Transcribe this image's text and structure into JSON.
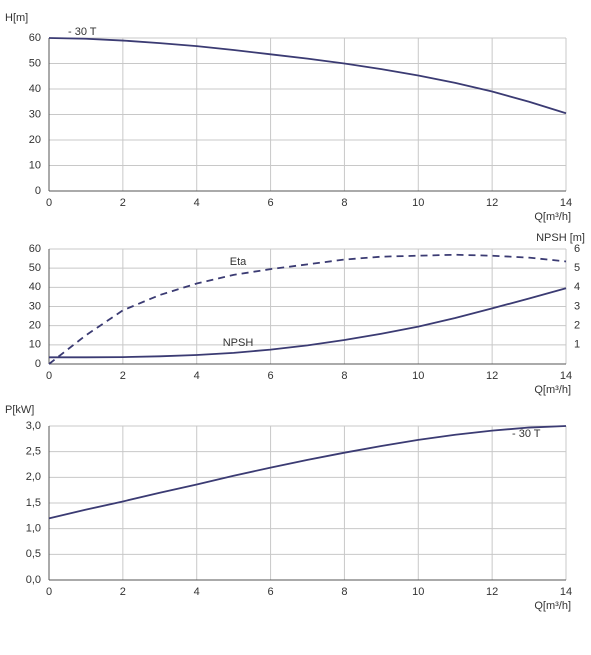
{
  "chart_data": [
    {
      "type": "line",
      "y_label": "H[m]",
      "x_label": "Q[m³/h]",
      "annotation": "- 30 T",
      "x": [
        0,
        1,
        2,
        3,
        4,
        5,
        6,
        7,
        8,
        9,
        10,
        11,
        12,
        13,
        14
      ],
      "xlim": [
        0,
        14
      ],
      "xticks": [
        0,
        2,
        4,
        6,
        8,
        10,
        12,
        14
      ],
      "ylim": [
        0,
        60
      ],
      "yticks": [
        0,
        10,
        20,
        30,
        40,
        50,
        60
      ],
      "grid": true,
      "series": [
        {
          "color": "#3b3b73",
          "style": "solid",
          "values": [
            60,
            59.7,
            59,
            58,
            56.8,
            55.3,
            53.6,
            51.9,
            50,
            47.8,
            45.3,
            42.4,
            39,
            35,
            30.5
          ]
        }
      ]
    },
    {
      "type": "line",
      "y2_label": "NPSH [m]",
      "x_label": "Q[m³/h]",
      "x": [
        0,
        1,
        2,
        3,
        4,
        5,
        6,
        7,
        8,
        9,
        10,
        11,
        12,
        13,
        14
      ],
      "xlim": [
        0,
        14
      ],
      "xticks": [
        0,
        2,
        4,
        6,
        8,
        10,
        12,
        14
      ],
      "ylim": [
        0,
        60
      ],
      "yticks": [
        0,
        10,
        20,
        30,
        40,
        50,
        60
      ],
      "y2lim": [
        0,
        6
      ],
      "y2ticks": [
        1,
        2,
        3,
        4,
        5,
        6
      ],
      "grid": true,
      "series": [
        {
          "name": "Eta",
          "color": "#3b3b73",
          "style": "dashed",
          "values": [
            0,
            15,
            28,
            36,
            42,
            46.5,
            49.5,
            52,
            54.5,
            56,
            56.5,
            57,
            56.5,
            55.5,
            53.5
          ]
        },
        {
          "name": "NPSH",
          "color": "#3b3b73",
          "style": "solid",
          "axis": "y2",
          "values": [
            0.35,
            0.35,
            0.36,
            0.4,
            0.47,
            0.58,
            0.75,
            0.97,
            1.25,
            1.58,
            1.95,
            2.4,
            2.9,
            3.42,
            3.95
          ]
        }
      ]
    },
    {
      "type": "line",
      "y_label": "P[kW]",
      "x_label": "Q[m³/h]",
      "annotation": "- 30 T",
      "x": [
        0,
        1,
        2,
        3,
        4,
        5,
        6,
        7,
        8,
        9,
        10,
        11,
        12,
        13,
        14
      ],
      "xlim": [
        0,
        14
      ],
      "xticks": [
        0,
        2,
        4,
        6,
        8,
        10,
        12,
        14
      ],
      "ylim": [
        0,
        3
      ],
      "yticks": [
        {
          "value": 0,
          "label": "0,0"
        },
        {
          "value": 0.5,
          "label": "0,5"
        },
        {
          "value": 1,
          "label": "1,0"
        },
        {
          "value": 1.5,
          "label": "1,5"
        },
        {
          "value": 2,
          "label": "2,0"
        },
        {
          "value": 2.5,
          "label": "2,5"
        },
        {
          "value": 3,
          "label": "3,0"
        }
      ],
      "grid": true,
      "series": [
        {
          "color": "#3b3b73",
          "style": "solid",
          "values": [
            1.2,
            1.37,
            1.53,
            1.7,
            1.86,
            2.03,
            2.19,
            2.34,
            2.48,
            2.61,
            2.73,
            2.83,
            2.91,
            2.97,
            3.0
          ]
        }
      ]
    }
  ]
}
